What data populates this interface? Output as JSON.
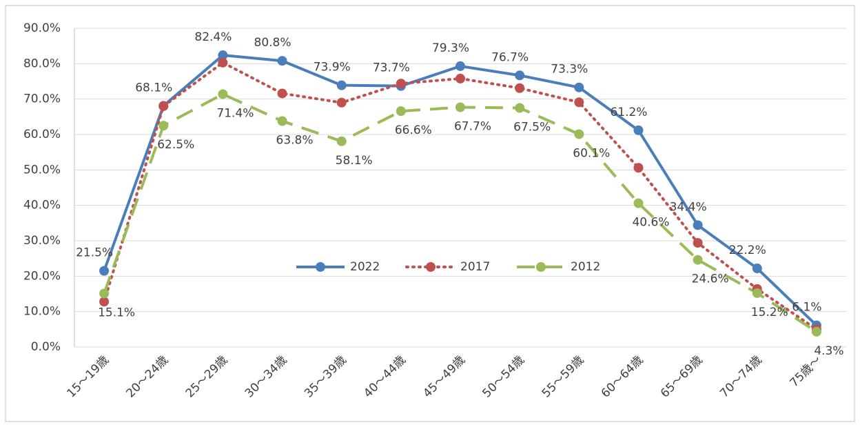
{
  "chart_data": {
    "type": "line",
    "categories": [
      "15～19歳",
      "20～24歳",
      "25～29歳",
      "30～34歳",
      "35～39歳",
      "40～44歳",
      "45～49歳",
      "50～54歳",
      "55～59歳",
      "60～64歳",
      "65～69歳",
      "70～74歳",
      "75歳～"
    ],
    "series": [
      {
        "name": "2022",
        "color": "#4a7ebb",
        "dash": "solid",
        "values": [
          21.5,
          68.1,
          82.4,
          80.8,
          73.9,
          73.7,
          79.3,
          76.7,
          73.3,
          61.2,
          34.4,
          22.2,
          6.1
        ],
        "value_labels": [
          "21.5%",
          "68.1%",
          "82.4%",
          "80.8%",
          "73.9%",
          "73.7%",
          "79.3%",
          "76.7%",
          "73.3%",
          "61.2%",
          "34.4%",
          "22.2%",
          "6.1%"
        ]
      },
      {
        "name": "2017",
        "color": "#c0504d",
        "dash": "dotted",
        "values": [
          12.8,
          68.0,
          80.3,
          71.6,
          69.0,
          74.4,
          75.8,
          73.1,
          69.1,
          50.6,
          29.4,
          16.4,
          5.0
        ]
      },
      {
        "name": "2012",
        "color": "#9bbb59",
        "dash": "dashed",
        "values": [
          15.1,
          62.5,
          71.4,
          63.8,
          58.1,
          66.6,
          67.7,
          67.5,
          60.1,
          40.6,
          24.6,
          15.2,
          4.3
        ],
        "value_labels": [
          "15.1%",
          "62.5%",
          "71.4%",
          "63.8%",
          "58.1%",
          "66.6%",
          "67.7%",
          "67.5%",
          "60.1%",
          "40.6%",
          "24.6%",
          "15.2%",
          "4.3%"
        ]
      }
    ],
    "ylim": [
      0,
      90
    ],
    "yticks": [
      {
        "value": 0,
        "label": "0.0%"
      },
      {
        "value": 10,
        "label": "10.0%"
      },
      {
        "value": 20,
        "label": "20.0%"
      },
      {
        "value": 30,
        "label": "30.0%"
      },
      {
        "value": 40,
        "label": "40.0%"
      },
      {
        "value": 50,
        "label": "50.0%"
      },
      {
        "value": 60,
        "label": "60.0%"
      },
      {
        "value": 70,
        "label": "70.0%"
      },
      {
        "value": 80,
        "label": "80.0%"
      },
      {
        "value": 90,
        "label": "90.0%"
      }
    ],
    "grid": true,
    "legend": "center"
  }
}
